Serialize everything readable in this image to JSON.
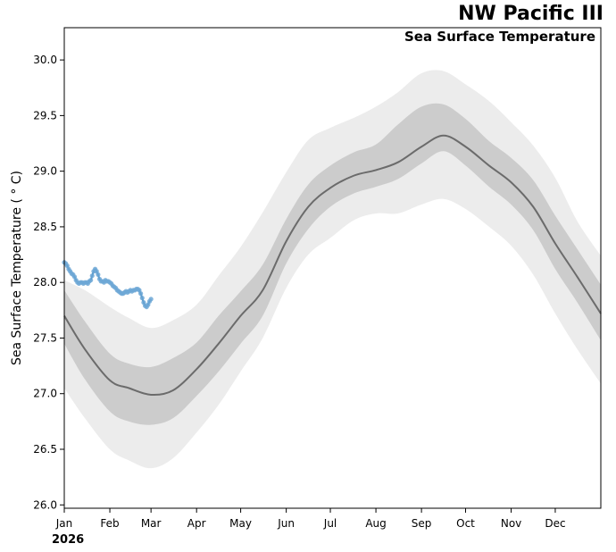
{
  "chart_data": {
    "type": "line",
    "title": "NW Pacific III",
    "subtitle": "Sea Surface Temperature",
    "year_label": "2026",
    "xlabel": "",
    "ylabel": "Sea Surface Temperature ( ° C)",
    "xlim": [
      1,
      366
    ],
    "ylim": [
      25.97,
      30.29
    ],
    "yticks": [
      26.0,
      26.5,
      27.0,
      27.5,
      28.0,
      28.5,
      29.0,
      29.5,
      30.0
    ],
    "ytick_labels": [
      "26.0",
      "26.5",
      "27.0",
      "27.5",
      "28.0",
      "28.5",
      "29.0",
      "29.5",
      "30.0"
    ],
    "xticks": [
      1,
      32,
      60,
      91,
      121,
      152,
      182,
      213,
      244,
      274,
      305,
      335
    ],
    "xtick_labels": [
      "Jan",
      "Feb",
      "Mar",
      "Apr",
      "May",
      "Jun",
      "Jul",
      "Aug",
      "Sep",
      "Oct",
      "Nov",
      "Dec"
    ],
    "grid": false,
    "colors": {
      "mean": "#6b6b6b",
      "band_inner": "#cccccc",
      "band_outer": "#ececec",
      "observed": "#3182bd",
      "observed_points": "#6fa8d6"
    },
    "climatology": {
      "day": [
        1,
        15,
        32,
        45,
        60,
        75,
        91,
        106,
        121,
        136,
        152,
        167,
        182,
        198,
        213,
        228,
        244,
        259,
        274,
        290,
        305,
        320,
        335,
        350,
        366
      ],
      "mean": [
        27.7,
        27.4,
        27.12,
        27.05,
        26.99,
        27.03,
        27.22,
        27.45,
        27.7,
        27.93,
        28.37,
        28.68,
        28.85,
        28.96,
        29.01,
        29.08,
        29.22,
        29.32,
        29.22,
        29.05,
        28.9,
        28.68,
        28.35,
        28.05,
        27.72
      ],
      "inner_low": [
        27.45,
        27.13,
        26.84,
        26.75,
        26.72,
        26.78,
        26.98,
        27.2,
        27.45,
        27.7,
        28.17,
        28.48,
        28.68,
        28.8,
        28.86,
        28.93,
        29.07,
        29.18,
        29.05,
        28.86,
        28.7,
        28.47,
        28.12,
        27.82,
        27.48
      ],
      "inner_high": [
        27.93,
        27.65,
        27.36,
        27.27,
        27.24,
        27.32,
        27.46,
        27.7,
        27.92,
        28.16,
        28.57,
        28.88,
        29.05,
        29.17,
        29.24,
        29.42,
        29.58,
        29.6,
        29.47,
        29.27,
        29.12,
        28.92,
        28.6,
        28.3,
        27.98
      ],
      "outer_low": [
        27.05,
        26.78,
        26.5,
        26.4,
        26.33,
        26.42,
        26.65,
        26.9,
        27.2,
        27.5,
        27.95,
        28.25,
        28.4,
        28.56,
        28.62,
        28.62,
        28.7,
        28.75,
        28.66,
        28.5,
        28.33,
        28.07,
        27.72,
        27.4,
        27.09
      ],
      "outer_high": [
        28.02,
        27.93,
        27.78,
        27.68,
        27.59,
        27.66,
        27.8,
        28.06,
        28.32,
        28.63,
        28.99,
        29.28,
        29.39,
        29.48,
        29.58,
        29.71,
        29.88,
        29.9,
        29.78,
        29.63,
        29.44,
        29.23,
        28.94,
        28.55,
        28.24
      ]
    },
    "observed": {
      "name": "2026",
      "day": [
        1,
        2,
        3,
        4,
        5,
        6,
        7,
        8,
        9,
        10,
        11,
        12,
        13,
        14,
        15,
        16,
        17,
        18,
        19,
        20,
        21,
        22,
        23,
        24,
        25,
        26,
        27,
        28,
        29,
        30,
        31,
        32,
        33,
        34,
        35,
        36,
        37,
        38,
        39,
        40,
        41,
        42,
        43,
        44,
        45,
        46,
        47,
        48,
        49,
        50,
        51,
        52,
        53,
        54,
        55,
        56,
        57,
        58,
        59,
        60
      ],
      "temp": [
        28.18,
        28.17,
        28.15,
        28.12,
        28.1,
        28.08,
        28.07,
        28.05,
        28.02,
        28.0,
        27.99,
        28.0,
        28.0,
        27.99,
        28.0,
        28.0,
        27.99,
        28.01,
        28.02,
        28.06,
        28.1,
        28.12,
        28.1,
        28.07,
        28.03,
        28.01,
        28.01,
        28.0,
        28.02,
        28.01,
        28.01,
        28.0,
        27.99,
        27.97,
        27.96,
        27.95,
        27.93,
        27.92,
        27.91,
        27.9,
        27.9,
        27.91,
        27.92,
        27.91,
        27.92,
        27.93,
        27.92,
        27.93,
        27.93,
        27.94,
        27.94,
        27.93,
        27.9,
        27.86,
        27.82,
        27.79,
        27.78,
        27.8,
        27.83,
        27.85
      ]
    }
  }
}
